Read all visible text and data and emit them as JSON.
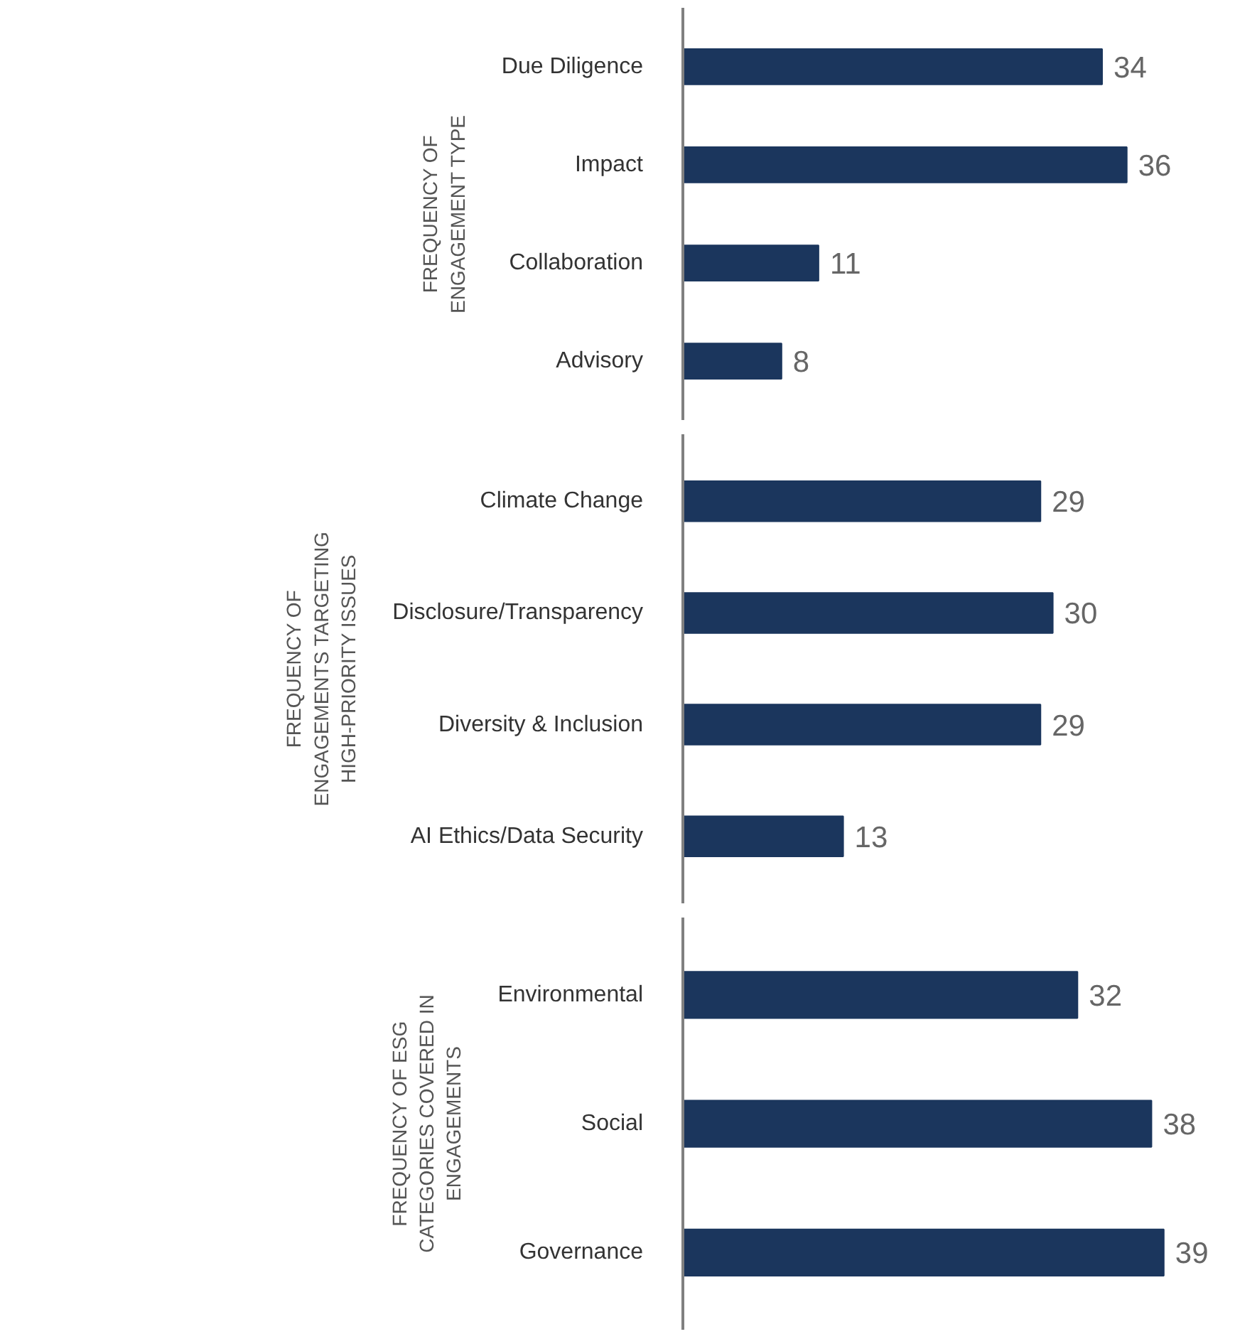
{
  "chart_data": [
    {
      "type": "bar",
      "orientation": "horizontal",
      "ylabel": "FREQUENCY OF ENGAGEMENT TYPE",
      "categories": [
        "Due Diligence",
        "Impact",
        "Collaboration",
        "Advisory"
      ],
      "values": [
        34,
        36,
        11,
        8
      ],
      "color": "#1b365d",
      "data_labels": true,
      "tick_labels": "y"
    },
    {
      "type": "bar",
      "orientation": "horizontal",
      "ylabel": "FREQUENCY OF ENGAGEMENTS TARGETING HIGH-PRIORITY ISSUES",
      "categories": [
        "Climate Change",
        "Disclosure/Transparency",
        "Diversity & Inclusion",
        "AI Ethics/Data Security"
      ],
      "values": [
        29,
        30,
        29,
        13
      ],
      "color": "#1b365d",
      "data_labels": true,
      "tick_labels": "y"
    },
    {
      "type": "bar",
      "orientation": "horizontal",
      "ylabel": "FREQUENCY OF ESG CATEGORIES COVERED IN ENGAGEMENTS",
      "categories": [
        "Environmental",
        "Social",
        "Governance"
      ],
      "values": [
        32,
        38,
        39
      ],
      "color": "#1b365d",
      "data_labels": true,
      "tick_labels": "y"
    }
  ]
}
